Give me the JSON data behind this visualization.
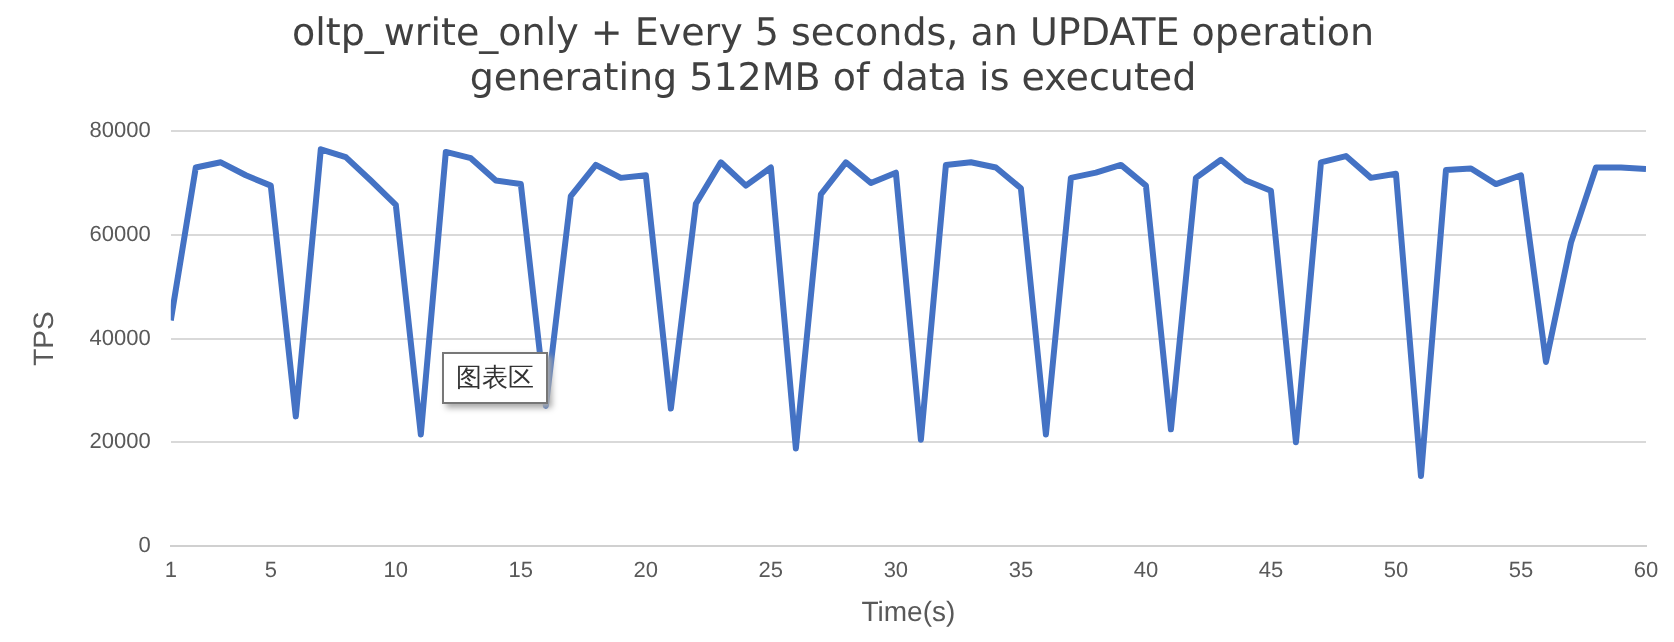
{
  "chart_data": {
    "type": "line",
    "title": [
      "oltp_write_only + Every 5 seconds, an UPDATE operation",
      "generating 512MB of data is executed"
    ],
    "xlabel": "Time(s)",
    "ylabel": "TPS",
    "x": [
      1,
      2,
      3,
      4,
      5,
      6,
      7,
      8,
      9,
      10,
      11,
      12,
      13,
      14,
      15,
      16,
      17,
      18,
      19,
      20,
      21,
      22,
      23,
      24,
      25,
      26,
      27,
      28,
      29,
      30,
      31,
      32,
      33,
      34,
      35,
      36,
      37,
      38,
      39,
      40,
      41,
      42,
      43,
      44,
      45,
      46,
      47,
      48,
      49,
      50,
      51,
      52,
      53,
      54,
      55,
      56,
      57,
      58,
      59,
      60
    ],
    "xlim": [
      1,
      60
    ],
    "xticks": [
      1,
      5,
      10,
      15,
      20,
      25,
      30,
      35,
      40,
      45,
      50,
      55,
      60
    ],
    "series": [
      {
        "color": "#4472c4",
        "values": [
          43500,
          73000,
          74000,
          71500,
          69500,
          25000,
          76500,
          75000,
          70500,
          65800,
          21500,
          76000,
          74800,
          70500,
          69800,
          27000,
          67500,
          73500,
          71000,
          71500,
          26500,
          66000,
          74000,
          69500,
          73000,
          18800,
          67800,
          74000,
          70000,
          72000,
          20500,
          73500,
          74000,
          73000,
          69000,
          21500,
          71000,
          72000,
          73500,
          69500,
          22500,
          71000,
          74500,
          70500,
          68500,
          20000,
          74000,
          75200,
          71000,
          71800,
          13500,
          72500,
          72800,
          69800,
          71500,
          35500,
          58500,
          73000,
          73000,
          72700
        ]
      }
    ],
    "ylim": [
      0,
      80000
    ],
    "yticks": [
      0,
      20000,
      40000,
      60000,
      80000
    ],
    "grid": "y",
    "legend": false,
    "marker": "none",
    "line_style": "solid",
    "annotations": [
      "图表区"
    ]
  }
}
